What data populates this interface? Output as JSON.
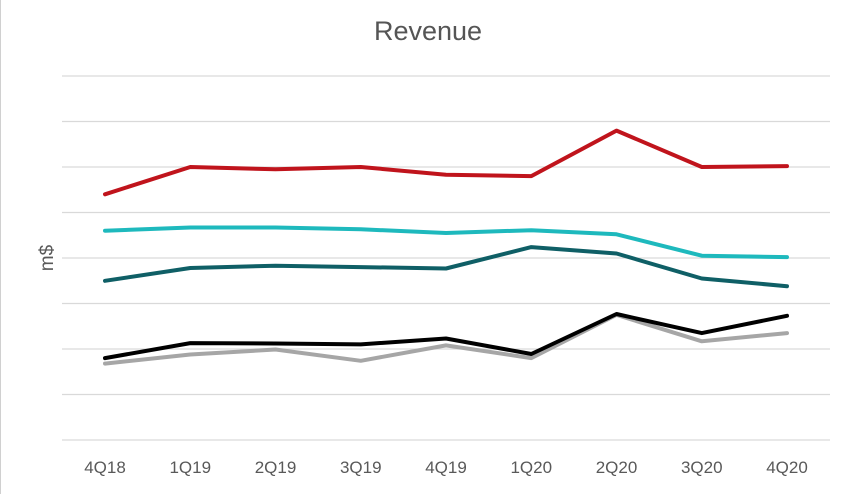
{
  "chart_data": {
    "type": "line",
    "title": "Revenue",
    "xlabel": "",
    "ylabel": "m$",
    "categories": [
      "4Q18",
      "1Q19",
      "2Q19",
      "3Q19",
      "4Q19",
      "1Q20",
      "2Q20",
      "3Q20",
      "4Q20"
    ],
    "ylim": [
      0,
      8
    ],
    "grid": true,
    "legend": "none",
    "series": [
      {
        "color": "#c0141c",
        "values": [
          5.4,
          6.0,
          5.95,
          6.0,
          5.83,
          5.8,
          6.8,
          6.0,
          6.02
        ]
      },
      {
        "color": "#1eb9bd",
        "values": [
          4.6,
          4.67,
          4.67,
          4.63,
          4.55,
          4.61,
          4.52,
          4.05,
          4.02
        ]
      },
      {
        "color": "#0f5f66",
        "values": [
          3.5,
          3.78,
          3.83,
          3.8,
          3.77,
          4.24,
          4.1,
          3.55,
          3.38
        ]
      },
      {
        "color": "#000000",
        "values": [
          1.8,
          2.13,
          2.12,
          2.1,
          2.23,
          1.89,
          2.77,
          2.35,
          2.73
        ]
      },
      {
        "color": "#a6a6a6",
        "values": [
          1.68,
          1.88,
          1.99,
          1.74,
          2.08,
          1.8,
          2.75,
          2.17,
          2.35
        ]
      }
    ]
  }
}
